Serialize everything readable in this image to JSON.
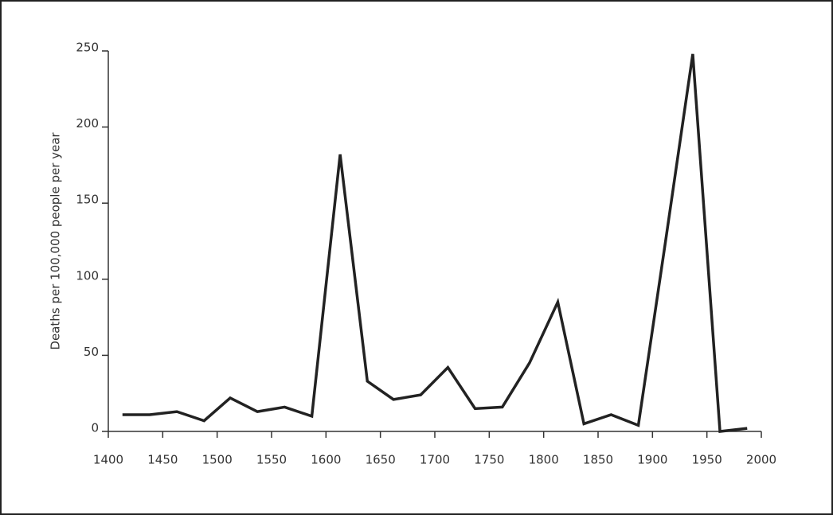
{
  "chart_data": {
    "type": "line",
    "y_label": "Deaths per 100,000 people per year",
    "x": [
      1413,
      1438,
      1463,
      1488,
      1512,
      1537,
      1562,
      1587,
      1613,
      1638,
      1662,
      1687,
      1712,
      1737,
      1762,
      1787,
      1813,
      1837,
      1862,
      1887,
      1912,
      1937,
      1962,
      1987
    ],
    "values": [
      11,
      11,
      13,
      7,
      22,
      13,
      16,
      10,
      182,
      33,
      21,
      24,
      42,
      15,
      16,
      45,
      85,
      5,
      11,
      4,
      125,
      248,
      0,
      2
    ],
    "color": "#222222",
    "xlim": [
      1400,
      2000
    ],
    "xticks": [
      1400,
      1450,
      1500,
      1550,
      1600,
      1650,
      1700,
      1750,
      1800,
      1850,
      1900,
      1950,
      2000
    ],
    "ylim": [
      0,
      250
    ],
    "yticks": [
      0,
      50,
      100,
      150,
      200,
      250
    ]
  }
}
